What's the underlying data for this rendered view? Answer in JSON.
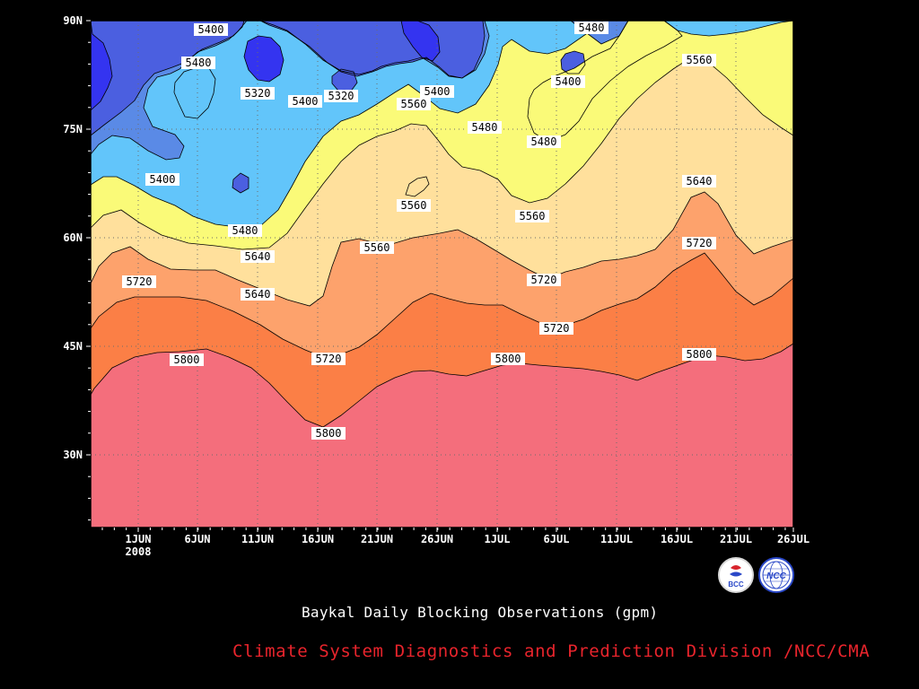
{
  "chart_data": {
    "type": "contour",
    "title": "Baykal Daily Blocking Observations (gpm)",
    "x_axis": {
      "ticks": [
        "1JUN",
        "6JUN",
        "11JUN",
        "16JUN",
        "21JUN",
        "26JUN",
        "1JUL",
        "6JUL",
        "11JUL",
        "16JUL",
        "21JUL",
        "26JUL"
      ],
      "year_label": "2008",
      "range": [
        "2008-05-28",
        "2008-07-28"
      ]
    },
    "y_axis": {
      "ticks": [
        "30N",
        "45N",
        "60N",
        "75N",
        "90N"
      ],
      "range": [
        20,
        90
      ]
    },
    "grid": "dotted",
    "levels": [
      5320,
      5400,
      5480,
      5560,
      5640,
      5720,
      5800
    ],
    "colors": {
      "below_5320": "#3434f0",
      "5320_5400": "#4b5fe0",
      "5400_5480": "#5a8ae6",
      "5480_5560": "#62c5fa",
      "5560_5640": "#fafa78",
      "5640_5720": "#ffe09c",
      "5720_5800": "#fda26c",
      "5800_5880": "#fb7f46",
      "above_5800": "#f46e7c"
    },
    "contour_labels": [
      "5400",
      "5480",
      "5320",
      "5400",
      "5320",
      "5400",
      "5560",
      "5480",
      "5480",
      "5400",
      "5480",
      "5560",
      "5400",
      "5560",
      "5480",
      "5560",
      "5640",
      "5560",
      "5640",
      "5640",
      "5720",
      "5640",
      "5720",
      "5720",
      "5800",
      "5720",
      "5800",
      "5800",
      "5800",
      "5720"
    ]
  },
  "caption": {
    "title": "Baykal Daily Blocking Observations (gpm)",
    "credit": "Climate System Diagnostics and Prediction Division /NCC/CMA"
  },
  "logos": {
    "bcc": "BCC",
    "ncc": "NCC"
  }
}
